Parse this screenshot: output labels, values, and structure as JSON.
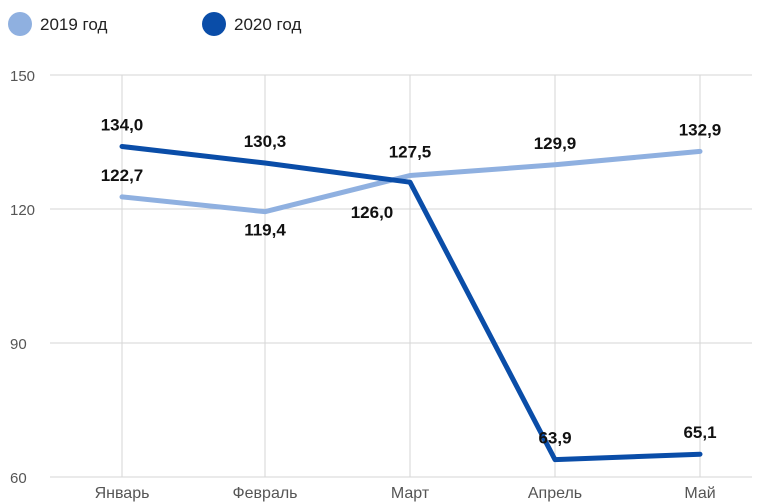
{
  "chart_data": {
    "type": "line",
    "categories": [
      "Январь",
      "Февраль",
      "Март",
      "Апрель",
      "Май"
    ],
    "series": [
      {
        "name": "2019 год",
        "color": "#8fb0e0",
        "values": [
          122.7,
          119.4,
          127.5,
          129.9,
          132.9
        ],
        "labels": [
          "122,7",
          "119,4",
          "127,5",
          "129,9",
          "132,9"
        ]
      },
      {
        "name": "2020 год",
        "color": "#0a4da8",
        "values": [
          134.0,
          130.3,
          126.0,
          63.9,
          65.1
        ],
        "labels": [
          "134,0",
          "130,3",
          "126,0",
          "63,9",
          "65,1"
        ]
      }
    ],
    "yticks": [
      "60",
      "90",
      "120",
      "150"
    ],
    "ylim": [
      60,
      150
    ],
    "grid": true,
    "legend": "top-left"
  }
}
